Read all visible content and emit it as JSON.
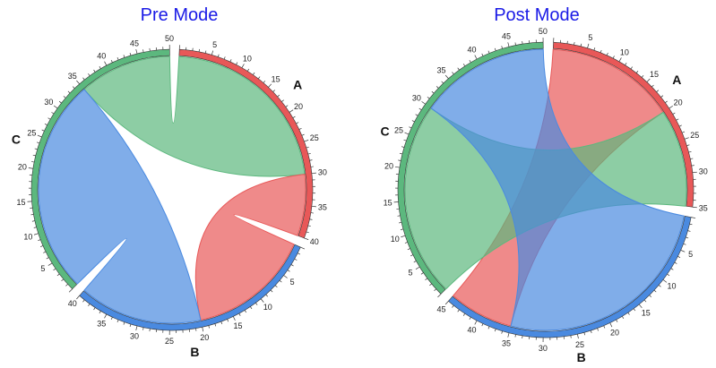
{
  "chart_data": [
    {
      "type": "chord",
      "title": "Pre Mode",
      "groups": [
        {
          "name": "A",
          "color": "#e85858",
          "max": 40,
          "ticks": [
            5,
            10,
            15,
            20,
            25,
            30,
            35,
            40
          ]
        },
        {
          "name": "B",
          "color": "#4a8ae0",
          "max": 40,
          "ticks": [
            5,
            10,
            15,
            20,
            25,
            30,
            35,
            40
          ]
        },
        {
          "name": "C",
          "color": "#5cb87e",
          "max": 50,
          "ticks": [
            5,
            10,
            15,
            20,
            25,
            30,
            35,
            40,
            45,
            50
          ]
        }
      ],
      "chords": [
        {
          "source": "C",
          "source_range": [
            35,
            50
          ],
          "target": "A",
          "target_range": [
            0,
            30
          ],
          "color": "#5cb87e"
        },
        {
          "source": "A",
          "source_range": [
            30,
            40
          ],
          "target": "B",
          "target_range": [
            0,
            20
          ],
          "color": "#e85858"
        },
        {
          "source": "B",
          "source_range": [
            20,
            40
          ],
          "target": "C",
          "target_range": [
            0,
            35
          ],
          "color": "#4a8ae0"
        }
      ]
    },
    {
      "type": "chord",
      "title": "Post Mode",
      "groups": [
        {
          "name": "A",
          "color": "#e85858",
          "max": 35,
          "ticks": [
            5,
            10,
            15,
            20,
            25,
            30,
            35
          ]
        },
        {
          "name": "B",
          "color": "#4a8ae0",
          "max": 45,
          "ticks": [
            5,
            10,
            15,
            20,
            25,
            30,
            35,
            40,
            45
          ]
        },
        {
          "name": "C",
          "color": "#5cb87e",
          "max": 50,
          "ticks": [
            5,
            10,
            15,
            20,
            25,
            30,
            35,
            40,
            45,
            50
          ]
        }
      ],
      "chords": [
        {
          "source": "A",
          "source_range": [
            0,
            20
          ],
          "target": "B",
          "target_range": [
            35,
            45
          ],
          "color": "#e85858"
        },
        {
          "source": "A",
          "source_range": [
            20,
            35
          ],
          "target": "C",
          "target_range": [
            0,
            30
          ],
          "color": "#5cb87e"
        },
        {
          "source": "B",
          "source_range": [
            0,
            35
          ],
          "target": "C",
          "target_range": [
            30,
            50
          ],
          "color": "#4a8ae0"
        }
      ]
    }
  ],
  "panels": {
    "left": {
      "title": "Pre Mode"
    },
    "right": {
      "title": "Post Mode"
    }
  }
}
